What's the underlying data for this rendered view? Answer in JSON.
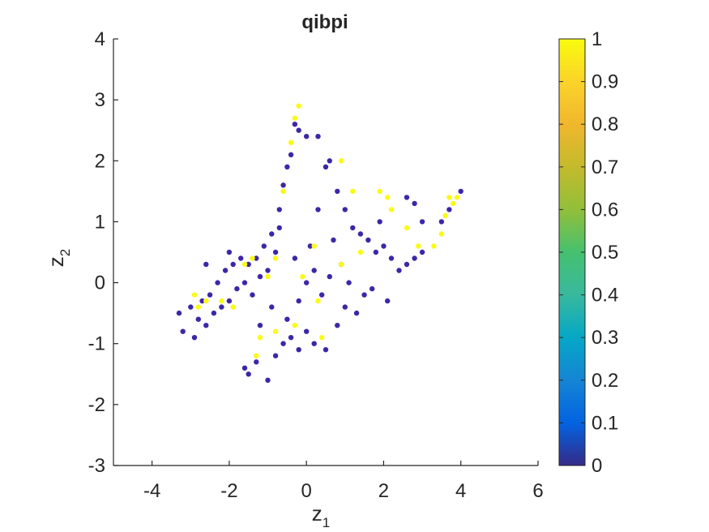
{
  "chart_data": {
    "type": "scatter",
    "title": "qibpi",
    "xlabel": {
      "base": "z",
      "sub": "1"
    },
    "ylabel": {
      "base": "z",
      "sub": "2"
    },
    "xlim": [
      -5,
      6
    ],
    "ylim": [
      -3,
      4
    ],
    "xticks": [
      -4,
      -2,
      0,
      2,
      4,
      6
    ],
    "yticks": [
      -3,
      -2,
      -1,
      0,
      1,
      2,
      3,
      4
    ],
    "box": false,
    "grid": false,
    "colorbar": {
      "range": [
        0,
        1
      ],
      "ticks": [
        "0",
        "0.1",
        "0.2",
        "0.3",
        "0.4",
        "0.5",
        "0.6",
        "0.7",
        "0.8",
        "0.9",
        "1"
      ],
      "colormap": "parula",
      "position": "right"
    },
    "colors": {
      "low": "#3e26a8",
      "high": "#f9fb15"
    },
    "series": [
      {
        "value": 0,
        "points": [
          [
            -3.3,
            -0.5
          ],
          [
            -3.2,
            -0.8
          ],
          [
            -3.0,
            -0.4
          ],
          [
            -2.9,
            -0.9
          ],
          [
            -2.8,
            -0.6
          ],
          [
            -2.7,
            -0.3
          ],
          [
            -2.6,
            -0.7
          ],
          [
            -2.5,
            -0.2
          ],
          [
            -2.4,
            -0.5
          ],
          [
            -2.3,
            0.0
          ],
          [
            -2.2,
            -0.4
          ],
          [
            -2.1,
            0.2
          ],
          [
            -2.0,
            -0.3
          ],
          [
            -1.9,
            0.3
          ],
          [
            -1.8,
            -0.1
          ],
          [
            -1.7,
            0.4
          ],
          [
            -1.6,
            0.0
          ],
          [
            -1.5,
            0.3
          ],
          [
            -1.4,
            -0.2
          ],
          [
            -1.3,
            0.4
          ],
          [
            -1.2,
            0.1
          ],
          [
            -1.1,
            0.6
          ],
          [
            -1.0,
            0.2
          ],
          [
            -0.9,
            0.8
          ],
          [
            -0.8,
            0.5
          ],
          [
            -0.7,
            1.2
          ],
          [
            -0.6,
            1.6
          ],
          [
            -0.5,
            1.9
          ],
          [
            -0.4,
            2.1
          ],
          [
            -0.3,
            2.6
          ],
          [
            -0.2,
            2.5
          ],
          [
            0.0,
            2.4
          ],
          [
            0.3,
            2.4
          ],
          [
            0.5,
            1.9
          ],
          [
            0.6,
            2.0
          ],
          [
            0.8,
            1.5
          ],
          [
            1.0,
            1.2
          ],
          [
            1.2,
            0.9
          ],
          [
            1.4,
            0.8
          ],
          [
            1.6,
            0.7
          ],
          [
            1.8,
            0.5
          ],
          [
            2.0,
            0.6
          ],
          [
            2.2,
            0.4
          ],
          [
            2.4,
            0.2
          ],
          [
            2.6,
            0.3
          ],
          [
            2.8,
            0.4
          ],
          [
            3.0,
            0.5
          ],
          [
            2.6,
            1.4
          ],
          [
            2.8,
            1.3
          ],
          [
            3.0,
            1.0
          ],
          [
            4.0,
            1.5
          ],
          [
            3.5,
            1.0
          ],
          [
            3.7,
            1.2
          ],
          [
            -1.6,
            -1.4
          ],
          [
            -1.5,
            -1.5
          ],
          [
            -1.3,
            -1.3
          ],
          [
            -1.0,
            -1.6
          ],
          [
            -0.8,
            -1.2
          ],
          [
            -0.6,
            -1.0
          ],
          [
            -0.4,
            -0.9
          ],
          [
            -0.2,
            -1.1
          ],
          [
            0.0,
            -0.8
          ],
          [
            0.2,
            -1.0
          ],
          [
            0.5,
            -1.1
          ],
          [
            0.8,
            -0.7
          ],
          [
            1.0,
            -0.4
          ],
          [
            1.3,
            -0.5
          ],
          [
            1.5,
            -0.2
          ],
          [
            0.0,
            0.0
          ],
          [
            0.2,
            0.2
          ],
          [
            0.4,
            -0.2
          ],
          [
            0.6,
            0.1
          ],
          [
            -0.2,
            -0.3
          ],
          [
            -0.5,
            -0.6
          ],
          [
            -0.3,
            0.4
          ],
          [
            0.1,
            0.6
          ],
          [
            0.9,
            0.3
          ],
          [
            1.1,
            0.0
          ],
          [
            1.7,
            -0.1
          ],
          [
            2.1,
            -0.3
          ],
          [
            -2.6,
            0.3
          ],
          [
            -2.0,
            0.5
          ],
          [
            -1.2,
            -0.7
          ],
          [
            -0.9,
            -0.4
          ],
          [
            -0.7,
            0.9
          ],
          [
            0.3,
            1.2
          ],
          [
            0.7,
            0.7
          ],
          [
            1.9,
            1.0
          ]
        ]
      },
      {
        "value": 1,
        "points": [
          [
            -0.2,
            2.9
          ],
          [
            -0.3,
            2.7
          ],
          [
            -0.4,
            2.3
          ],
          [
            0.9,
            2.0
          ],
          [
            1.2,
            1.5
          ],
          [
            1.9,
            1.5
          ],
          [
            2.1,
            1.4
          ],
          [
            2.2,
            1.2
          ],
          [
            3.7,
            1.4
          ],
          [
            3.8,
            1.3
          ],
          [
            3.9,
            1.4
          ],
          [
            3.6,
            1.1
          ],
          [
            3.5,
            0.8
          ],
          [
            3.3,
            0.6
          ],
          [
            -2.8,
            -0.4
          ],
          [
            -2.6,
            -0.3
          ],
          [
            -2.9,
            -0.2
          ],
          [
            -2.2,
            -0.3
          ],
          [
            -1.9,
            -0.4
          ],
          [
            -1.3,
            -1.2
          ],
          [
            -1.2,
            -0.9
          ],
          [
            -0.8,
            -0.8
          ],
          [
            0.4,
            -0.9
          ],
          [
            -1.6,
            0.3
          ],
          [
            -1.4,
            0.4
          ],
          [
            -1.0,
            0.1
          ],
          [
            -0.8,
            0.4
          ],
          [
            0.2,
            0.6
          ],
          [
            0.9,
            0.3
          ],
          [
            1.4,
            0.5
          ],
          [
            2.6,
            0.9
          ],
          [
            2.9,
            0.6
          ],
          [
            -0.6,
            1.5
          ],
          [
            -0.1,
            0.1
          ],
          [
            0.3,
            -0.3
          ],
          [
            -0.3,
            -0.7
          ]
        ]
      }
    ]
  }
}
